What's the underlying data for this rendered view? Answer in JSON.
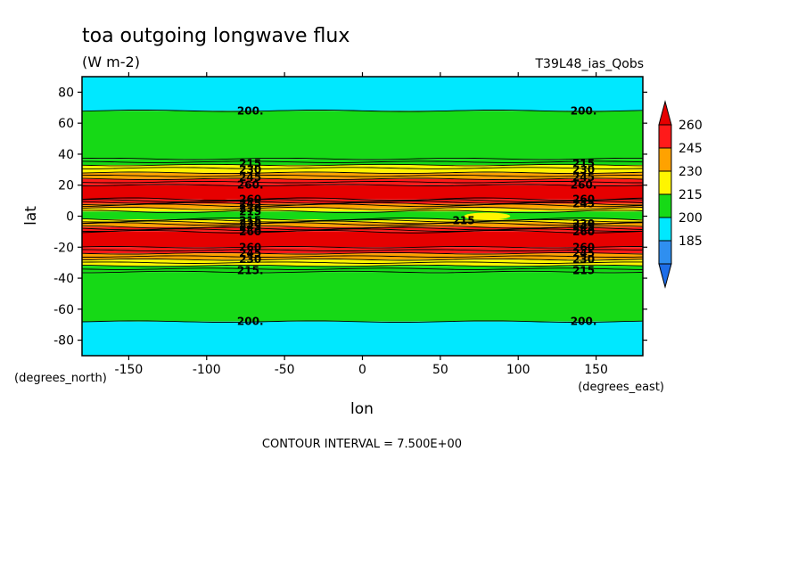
{
  "chart_data": {
    "type": "heatmap",
    "title": "toa outgoing longwave flux",
    "units": "(W m-2)",
    "run_label": "T39L48_ias_Qobs",
    "xlabel": "lon",
    "ylabel": "lat",
    "x_units": "(degrees_east)",
    "y_units": "(degrees_north)",
    "xlim": [
      -180,
      180
    ],
    "ylim": [
      -90,
      90
    ],
    "x_ticks": [
      -150,
      -100,
      -50,
      0,
      50,
      100,
      150
    ],
    "y_ticks": [
      -80,
      -60,
      -40,
      -20,
      0,
      20,
      40,
      60,
      80
    ],
    "contour_interval_text": "CONTOUR INTERVAL = 7.500E+00",
    "colorbar": {
      "labels": [
        185,
        200,
        215,
        230,
        245,
        260
      ],
      "colors": [
        "#2f8ff0",
        "#00e8ff",
        "#16d916",
        "#fff500",
        "#ffa200",
        "#ff1a1a"
      ],
      "below_color": "#1e6ee8",
      "above_color": "#e60000"
    },
    "bands": [
      {
        "lat_min": 68,
        "lat_max": 90,
        "value": 195
      },
      {
        "lat_min": 37,
        "lat_max": 68,
        "value": 207
      },
      {
        "lat_min": 33,
        "lat_max": 37,
        "value": 214
      },
      {
        "lat_min": 28,
        "lat_max": 33,
        "value": 222
      },
      {
        "lat_min": 24,
        "lat_max": 28,
        "value": 236
      },
      {
        "lat_min": 20,
        "lat_max": 24,
        "value": 250
      },
      {
        "lat_min": 11,
        "lat_max": 20,
        "value": 265
      },
      {
        "lat_min": 8,
        "lat_max": 11,
        "value": 250
      },
      {
        "lat_min": 5,
        "lat_max": 8,
        "value": 230
      },
      {
        "lat_min": 3,
        "lat_max": 5,
        "value": 216
      },
      {
        "lat_min": -2,
        "lat_max": 3,
        "value": 205
      },
      {
        "lat_min": -4,
        "lat_max": -2,
        "value": 216
      },
      {
        "lat_min": -7,
        "lat_max": -4,
        "value": 230
      },
      {
        "lat_min": -10,
        "lat_max": -7,
        "value": 250
      },
      {
        "lat_min": -20,
        "lat_max": -10,
        "value": 265
      },
      {
        "lat_min": -24,
        "lat_max": -20,
        "value": 250
      },
      {
        "lat_min": -28,
        "lat_max": -24,
        "value": 236
      },
      {
        "lat_min": -32,
        "lat_max": -28,
        "value": 222
      },
      {
        "lat_min": -36,
        "lat_max": -32,
        "value": 214
      },
      {
        "lat_min": -68,
        "lat_max": -36,
        "value": 207
      },
      {
        "lat_min": -90,
        "lat_max": -68,
        "value": 195
      }
    ],
    "contour_lats": [
      68,
      37,
      35,
      33,
      31,
      28,
      26,
      24,
      22,
      20,
      11,
      10,
      9,
      8,
      7,
      5,
      3,
      -2,
      -3,
      -4,
      -5,
      -7,
      -8,
      -9,
      -10,
      -20,
      -22,
      -24,
      -26,
      -28,
      -30,
      -32,
      -34,
      -36,
      -68
    ],
    "contour_labels": [
      {
        "text": "200.",
        "lon": -72,
        "lat": 68
      },
      {
        "text": "200.",
        "lon": 142,
        "lat": 68
      },
      {
        "text": "215",
        "lon": -72,
        "lat": 34
      },
      {
        "text": "230",
        "lon": -72,
        "lat": 30
      },
      {
        "text": "245",
        "lon": -72,
        "lat": 25
      },
      {
        "text": "260.",
        "lon": -72,
        "lat": 20
      },
      {
        "text": "215",
        "lon": 142,
        "lat": 34
      },
      {
        "text": "230",
        "lon": 142,
        "lat": 30
      },
      {
        "text": "245",
        "lon": 142,
        "lat": 25
      },
      {
        "text": "260.",
        "lon": 142,
        "lat": 20
      },
      {
        "text": "260",
        "lon": -72,
        "lat": 11
      },
      {
        "text": "245",
        "lon": -72,
        "lat": 8
      },
      {
        "text": "230",
        "lon": -72,
        "lat": 5
      },
      {
        "text": "215",
        "lon": -72,
        "lat": 3
      },
      {
        "text": "260",
        "lon": 142,
        "lat": 11
      },
      {
        "text": "245",
        "lon": 142,
        "lat": 8
      },
      {
        "text": "215",
        "lon": -72,
        "lat": -3
      },
      {
        "text": "230",
        "lon": -72,
        "lat": -5
      },
      {
        "text": "245",
        "lon": -72,
        "lat": -7
      },
      {
        "text": "260",
        "lon": -72,
        "lat": -10
      },
      {
        "text": "215",
        "lon": 65,
        "lat": -3
      },
      {
        "text": "230",
        "lon": 142,
        "lat": -5
      },
      {
        "text": "245",
        "lon": 142,
        "lat": -7
      },
      {
        "text": "260",
        "lon": 142,
        "lat": -10
      },
      {
        "text": "260",
        "lon": -72,
        "lat": -20
      },
      {
        "text": "245",
        "lon": -72,
        "lat": -24
      },
      {
        "text": "230",
        "lon": -72,
        "lat": -28
      },
      {
        "text": "215.",
        "lon": -72,
        "lat": -35
      },
      {
        "text": "260",
        "lon": 142,
        "lat": -20
      },
      {
        "text": "245",
        "lon": 142,
        "lat": -24
      },
      {
        "text": "230",
        "lon": 142,
        "lat": -28
      },
      {
        "text": "215",
        "lon": 142,
        "lat": -35
      },
      {
        "text": "200.",
        "lon": -72,
        "lat": -68
      },
      {
        "text": "200.",
        "lon": 142,
        "lat": -68
      }
    ]
  }
}
